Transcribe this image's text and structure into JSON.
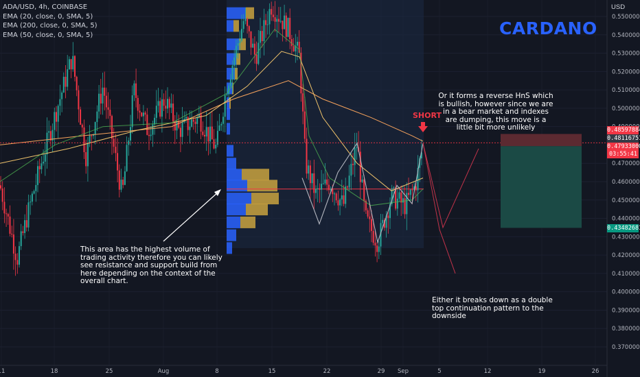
{
  "legend": {
    "symbol": "ADA/USD, 4h, COINBASE",
    "ema20": "EMA (20, close, 0, SMA, 5)",
    "ema200": "EMA (200, close, 0, SMA, 5)",
    "ema50": "EMA (50, close, 0, SMA, 5)"
  },
  "title": "CARDANO",
  "currency": "USD",
  "annotations": {
    "volume_note": "This area has the highest volume of trading activity therefore you can likely see resistance and support build from here depending on the context of the overall chart.",
    "reverse_note": "Or it forms a reverse HnS which is bullish, however since we are in a bear market and indexes are dumping, this move is a little bit more unlikely",
    "breakdown_note": "Either it breaks down as a double top continuation pattern to the downside",
    "short_label": "SHORT"
  },
  "price_badges": {
    "stop": "0.48597884",
    "current": "0.48116751",
    "entry": "0.47933000",
    "countdown": "03:55:41",
    "target": "0.43482681"
  },
  "colors": {
    "background": "#131722",
    "up": "#26a69a",
    "down": "#f23645",
    "ema20": "#4caf50",
    "ema50": "#f0c36b",
    "ema200": "#f7a35c",
    "title": "#2962ff",
    "profit_zone": "#1b4a45",
    "stop_zone": "#5c2a31",
    "volume_up": "#2962ff",
    "volume_down": "#c9a23f"
  },
  "chart_data": {
    "type": "candlestick",
    "y_axis_ticks": [
      "0.55000000",
      "0.54000000",
      "0.53000000",
      "0.52000000",
      "0.51000000",
      "0.50000000",
      "0.49000000",
      "0.47000000",
      "0.46000000",
      "0.45000000",
      "0.44000000",
      "0.43000000",
      "0.42000000",
      "0.41000000",
      "0.40000000",
      "0.39000000",
      "0.38000000",
      "0.37000000"
    ],
    "x_axis_ticks": [
      "11",
      "18",
      "25",
      "Aug",
      "8",
      "15",
      "22",
      "29",
      "Sep",
      "5",
      "12",
      "19",
      "26"
    ],
    "ylim": [
      0.365,
      0.557
    ],
    "price_path_keypoints": [
      [
        0,
        0.458
      ],
      [
        25,
        0.418
      ],
      [
        40,
        0.442
      ],
      [
        60,
        0.47
      ],
      [
        80,
        0.496
      ],
      [
        105,
        0.528
      ],
      [
        125,
        0.474
      ],
      [
        150,
        0.512
      ],
      [
        178,
        0.452
      ],
      [
        195,
        0.51
      ],
      [
        215,
        0.488
      ],
      [
        240,
        0.505
      ],
      [
        260,
        0.488
      ],
      [
        290,
        0.495
      ],
      [
        315,
        0.478
      ],
      [
        330,
        0.512
      ],
      [
        355,
        0.548
      ],
      [
        372,
        0.528
      ],
      [
        395,
        0.556
      ],
      [
        420,
        0.543
      ],
      [
        436,
        0.528
      ],
      [
        445,
        0.47
      ],
      [
        460,
        0.453
      ],
      [
        480,
        0.46
      ],
      [
        500,
        0.447
      ],
      [
        520,
        0.481
      ],
      [
        532,
        0.44
      ],
      [
        550,
        0.427
      ],
      [
        570,
        0.452
      ],
      [
        590,
        0.447
      ],
      [
        605,
        0.458
      ],
      [
        616,
        0.48
      ]
    ],
    "ema_keypoints": {
      "ema20": [
        [
          0,
          0.46
        ],
        [
          80,
          0.48
        ],
        [
          150,
          0.49
        ],
        [
          250,
          0.492
        ],
        [
          330,
          0.508
        ],
        [
          400,
          0.543
        ],
        [
          436,
          0.532
        ],
        [
          450,
          0.485
        ],
        [
          480,
          0.462
        ],
        [
          540,
          0.447
        ],
        [
          600,
          0.45
        ],
        [
          616,
          0.456
        ]
      ],
      "ema50": [
        [
          0,
          0.47
        ],
        [
          100,
          0.478
        ],
        [
          200,
          0.488
        ],
        [
          300,
          0.496
        ],
        [
          360,
          0.512
        ],
        [
          410,
          0.531
        ],
        [
          436,
          0.528
        ],
        [
          470,
          0.495
        ],
        [
          520,
          0.47
        ],
        [
          570,
          0.455
        ],
        [
          616,
          0.462
        ]
      ],
      "ema200": [
        [
          0,
          0.48
        ],
        [
          120,
          0.485
        ],
        [
          250,
          0.49
        ],
        [
          340,
          0.505
        ],
        [
          420,
          0.515
        ],
        [
          470,
          0.505
        ],
        [
          540,
          0.495
        ],
        [
          600,
          0.485
        ],
        [
          616,
          0.482
        ]
      ]
    },
    "pattern_zigzag": [
      [
        440,
        0.462
      ],
      [
        465,
        0.437
      ],
      [
        492,
        0.465
      ],
      [
        520,
        0.481
      ],
      [
        550,
        0.427
      ],
      [
        578,
        0.458
      ],
      [
        600,
        0.448
      ],
      [
        616,
        0.481
      ]
    ],
    "projection_down": [
      [
        616,
        0.481
      ],
      [
        640,
        0.434
      ],
      [
        663,
        0.41
      ]
    ],
    "projection_up": [
      [
        616,
        0.481
      ],
      [
        645,
        0.435
      ],
      [
        697,
        0.478
      ]
    ],
    "volume_profile_poc": 0.456,
    "position": {
      "stop": 0.48598,
      "entry": 0.47933,
      "target": 0.43483
    }
  }
}
